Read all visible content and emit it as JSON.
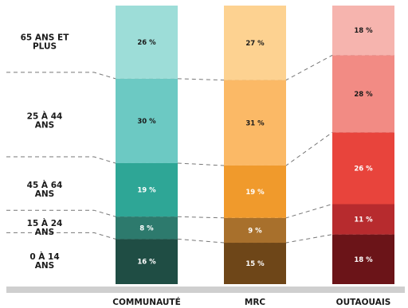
{
  "chart_data": {
    "type": "bar",
    "stacked": true,
    "unit": "%",
    "categories": [
      "COMMUNAUTÉ",
      "MRC",
      "OUTAOUAIS"
    ],
    "series": [
      {
        "name": "0 À 14 ANS",
        "name_lines": [
          "0 À 14",
          "ANS"
        ],
        "values": [
          16,
          15,
          18
        ],
        "colors": [
          "#1f4d44",
          "#6e4618",
          "#6b1418"
        ]
      },
      {
        "name": "15 À 24 ANS",
        "name_lines": [
          "15 À 24",
          "ANS"
        ],
        "values": [
          8,
          9,
          11
        ],
        "colors": [
          "#2d7a6d",
          "#a8702c",
          "#b72b2e"
        ]
      },
      {
        "name": "45 À 64 ANS",
        "name_lines": [
          "45 À 64",
          "ANS"
        ],
        "values": [
          19,
          19,
          26
        ],
        "colors": [
          "#2ea696",
          "#f09a2c",
          "#e8443c"
        ]
      },
      {
        "name": "25 À 44 ANS",
        "name_lines": [
          "25 À 44",
          "ANS"
        ],
        "values": [
          30,
          31,
          28
        ],
        "colors": [
          "#6cc9c3",
          "#fbb966",
          "#f28b84"
        ]
      },
      {
        "name": "65 ANS ET PLUS",
        "name_lines": [
          "65 ANS ET",
          "PLUS"
        ],
        "values": [
          26,
          27,
          18
        ],
        "colors": [
          "#9dddd8",
          "#fdd291",
          "#f6b4ae"
        ]
      }
    ],
    "label_text_colors": [
      [
        "#ffffff",
        "#ffffff",
        "#ffffff"
      ],
      [
        "#ffffff",
        "#ffffff",
        "#ffffff"
      ],
      [
        "#ffffff",
        "#ffffff",
        "#ffffff"
      ],
      [
        "#1a1a1a",
        "#1a1a1a",
        "#1a1a1a"
      ],
      [
        "#1a1a1a",
        "#1a1a1a",
        "#1a1a1a"
      ]
    ],
    "legend": "left",
    "connector_color": "#777777",
    "baseline_color": "#cfcfcf"
  }
}
